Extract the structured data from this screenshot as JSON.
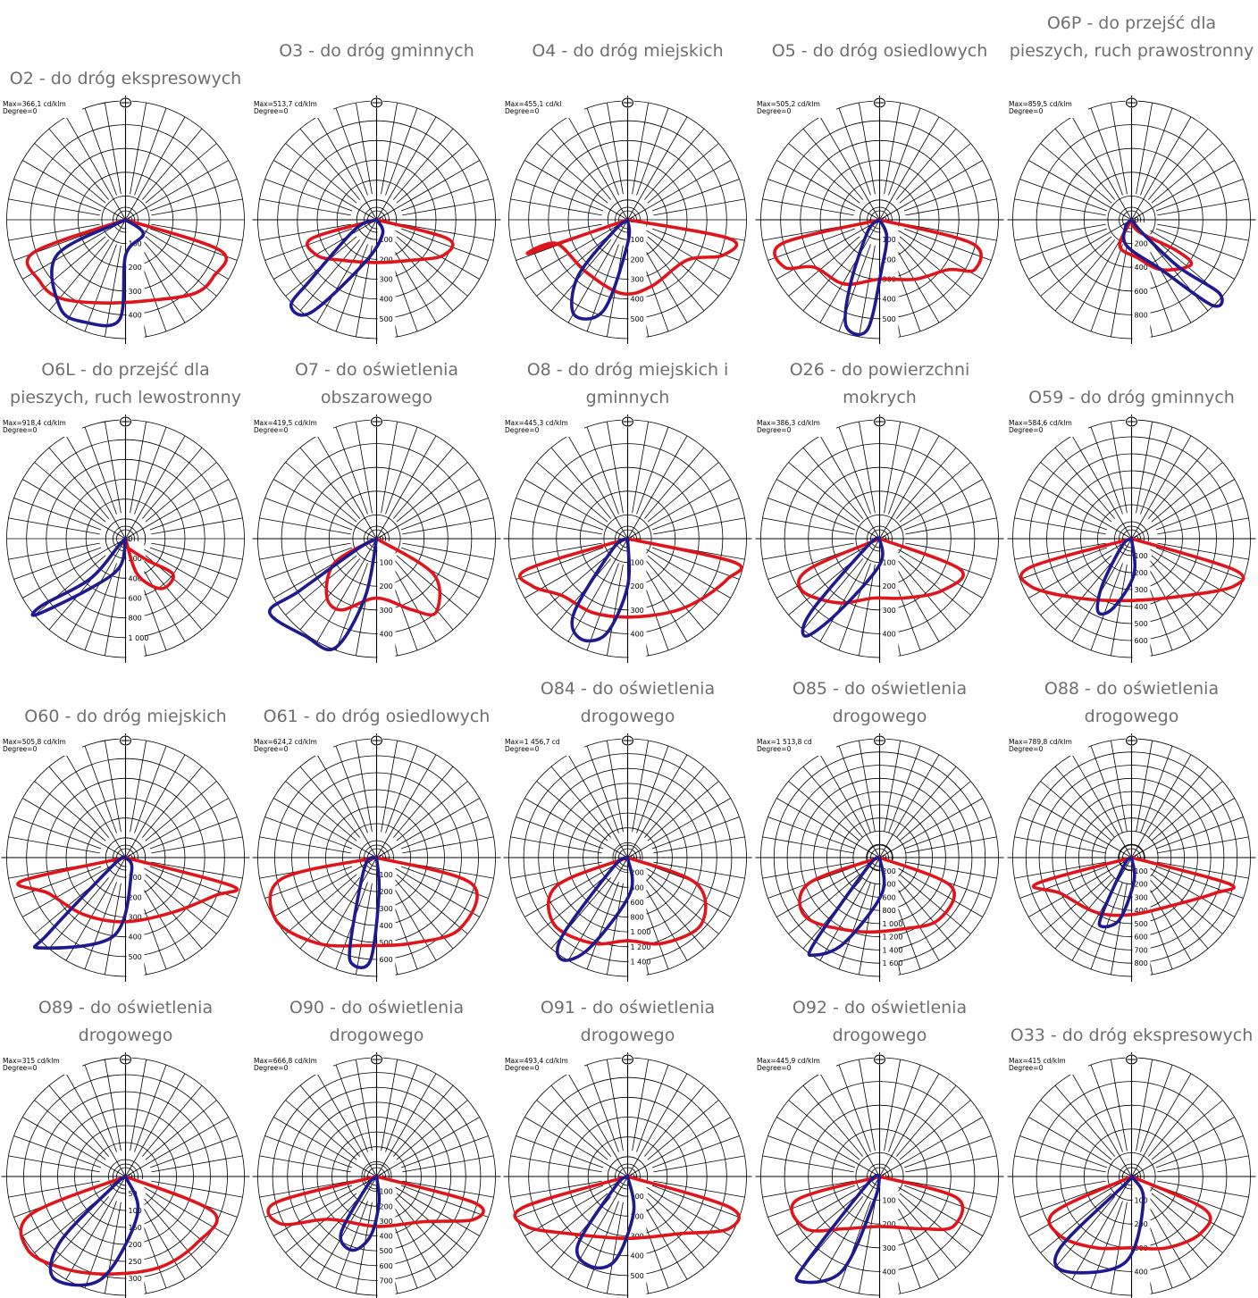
{
  "colors": {
    "c0_curve": "#1f1a8f",
    "c90_curve": "#e0151b",
    "title_text": "#6f6f6f",
    "grid": "#000000"
  },
  "icons": {
    "luminaire_symbol": "luminaire-icon"
  },
  "charts": [
    {
      "title": "O2 - do dróg ekspresowych",
      "max": "Max=366,1 cd/klm",
      "degree": "Degree=0",
      "rings": [
        "0",
        "100",
        "200",
        "300",
        "400"
      ]
    },
    {
      "title": "O3 - do dróg gminnych",
      "max": "Max=513,7 cd/klm",
      "degree": "Degree=0",
      "rings": [
        "0",
        "100",
        "200",
        "300",
        "400",
        "500"
      ]
    },
    {
      "title": "O4 - do dróg miejskich",
      "max": "Max=455,1 cd/kl",
      "degree": "Degree=0",
      "rings": [
        "0",
        "100",
        "200",
        "300",
        "400",
        "500"
      ]
    },
    {
      "title": "O5 - do dróg osiedlowych",
      "max": "Max=505,2 cd/klm",
      "degree": "Degree=0",
      "rings": [
        "0",
        "100",
        "200",
        "300",
        "400",
        "500"
      ]
    },
    {
      "title": "O6P - do przejść dla pieszych, ruch prawostronny",
      "max": "Max=859,5 cd/klm",
      "degree": "Degree=0",
      "rings": [
        "0",
        "200",
        "400",
        "600",
        "800"
      ]
    },
    {
      "title": "O6L - do przejść dla pieszych, ruch lewostronny",
      "max": "Max=918,4 cd/klm",
      "degree": "Degree=0",
      "rings": [
        "0",
        "200",
        "400",
        "600",
        "800",
        "1 000"
      ]
    },
    {
      "title": "O7 - do oświetlenia obszarowego",
      "max": "Max=419,5 cd/klm",
      "degree": "Degree=0",
      "rings": [
        "0",
        "100",
        "200",
        "300",
        "400"
      ]
    },
    {
      "title": "O8 - do dróg miejskich i gminnych",
      "max": "Max=445,3 cd/klm",
      "degree": "Degree=0",
      "rings": [
        "0",
        "100",
        "200",
        "300",
        "400"
      ]
    },
    {
      "title": "O26 - do powierzchni mokrych",
      "max": "Max=386,3 cd/klm",
      "degree": "Degree=0",
      "rings": [
        "0",
        "100",
        "200",
        "300",
        "400"
      ]
    },
    {
      "title": "O59 - do dróg gminnych",
      "max": "Max=584,6 cd/klm",
      "degree": "Degree=0",
      "rings": [
        "0",
        "100",
        "200",
        "300",
        "400",
        "500",
        "600"
      ]
    },
    {
      "title": "O60 - do dróg miejskich",
      "max": "Max=505,8 cd/klm",
      "degree": "Degree=0",
      "rings": [
        "0",
        "100",
        "200",
        "300",
        "400",
        "500"
      ]
    },
    {
      "title": "O61 - do dróg osiedlowych",
      "max": "Max=624,2 cd/klm",
      "degree": "Degree=0",
      "rings": [
        "0",
        "100",
        "200",
        "300",
        "400",
        "500",
        "600"
      ]
    },
    {
      "title": "O84 - do oświetlenia drogowego",
      "max": "Max=1 456,7 cd",
      "degree": "Degree=0",
      "rings": [
        "0",
        "200",
        "400",
        "600",
        "800",
        "1 000",
        "1 200",
        "1 400"
      ]
    },
    {
      "title": "O85 - do oświetlenia drogowego",
      "max": "Max=1 513,8 cd",
      "degree": "Degree=0",
      "rings": [
        "0",
        "200",
        "400",
        "600",
        "800",
        "1 000",
        "1 200",
        "1 400",
        "1 600"
      ]
    },
    {
      "title": "O88 - do oświetlenia drogowego",
      "max": "Max=789,8 cd/klm",
      "degree": "Degree=0",
      "rings": [
        "0",
        "100",
        "200",
        "300",
        "400",
        "500",
        "600",
        "700",
        "800"
      ]
    },
    {
      "title": "O89 - do oświetlenia drogowego",
      "max": "Max=315 cd/klm",
      "degree": "Degree=0",
      "rings": [
        "0",
        "50",
        "100",
        "150",
        "200",
        "250",
        "300"
      ]
    },
    {
      "title": "O90 - do oświetlenia drogowego",
      "max": "Max=666,8 cd/klm",
      "degree": "Degree=0",
      "rings": [
        "0",
        "100",
        "200",
        "300",
        "400",
        "500",
        "600",
        "700"
      ]
    },
    {
      "title": "O91 - do oświetlenia drogowego",
      "max": "Max=493,4 cd/klm",
      "degree": "Degree=0",
      "rings": [
        "0",
        "100",
        "200",
        "300",
        "400",
        "500"
      ]
    },
    {
      "title": "O92 - do oświetlenia drogowego",
      "max": "Max=445,9 cd/klm",
      "degree": "Degree=0",
      "rings": [
        "0",
        "100",
        "200",
        "300",
        "400"
      ]
    },
    {
      "title": "O33 - do dróg ekspresowych",
      "max": "Max=415 cd/klm",
      "degree": "Degree=0",
      "rings": [
        "0",
        "100",
        "200",
        "300",
        "400"
      ]
    }
  ]
}
